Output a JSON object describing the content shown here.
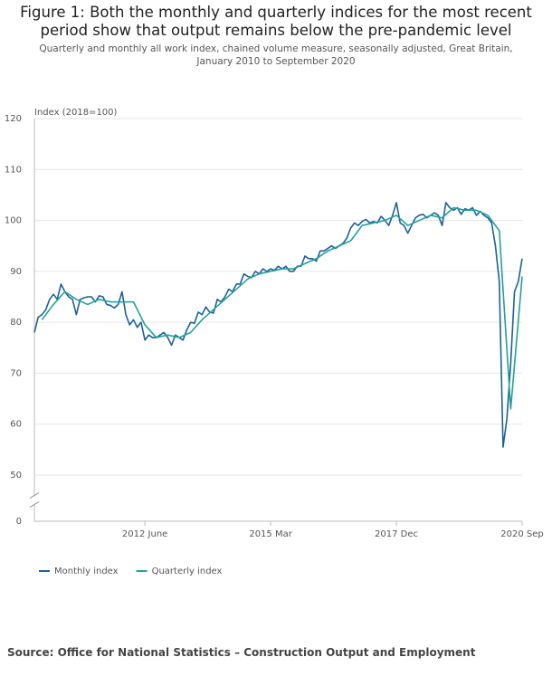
{
  "chart_data": {
    "type": "line",
    "title": "Figure 1: Both the monthly and quarterly indices for the most recent period show that output remains below the pre-pandemic level",
    "subtitle": "Quarterly and monthly all work index, chained volume measure, seasonally adjusted, Great Britain, January 2010 to September 2020",
    "y_label": "Index (2018=100)",
    "source": "Source: Office for National Statistics – Construction Output and Employment",
    "x": [
      2010,
      2010.083,
      2010.167,
      2010.25,
      2010.333,
      2010.417,
      2010.5,
      2010.583,
      2010.667,
      2010.75,
      2010.833,
      2010.917,
      2011,
      2011.083,
      2011.167,
      2011.25,
      2011.333,
      2011.417,
      2011.5,
      2011.583,
      2011.667,
      2011.75,
      2011.833,
      2011.917,
      2012,
      2012.083,
      2012.167,
      2012.25,
      2012.333,
      2012.417,
      2012.5,
      2012.583,
      2012.667,
      2012.75,
      2012.833,
      2012.917,
      2013,
      2013.083,
      2013.167,
      2013.25,
      2013.333,
      2013.417,
      2013.5,
      2013.583,
      2013.667,
      2013.75,
      2013.833,
      2013.917,
      2014,
      2014.083,
      2014.167,
      2014.25,
      2014.333,
      2014.417,
      2014.5,
      2014.583,
      2014.667,
      2014.75,
      2014.833,
      2014.917,
      2015,
      2015.083,
      2015.167,
      2015.25,
      2015.333,
      2015.417,
      2015.5,
      2015.583,
      2015.667,
      2015.75,
      2015.833,
      2015.917,
      2016,
      2016.083,
      2016.167,
      2016.25,
      2016.333,
      2016.417,
      2016.5,
      2016.583,
      2016.667,
      2016.75,
      2016.833,
      2016.917,
      2017,
      2017.083,
      2017.167,
      2017.25,
      2017.333,
      2017.417,
      2017.5,
      2017.583,
      2017.667,
      2017.75,
      2017.833,
      2017.917,
      2018,
      2018.083,
      2018.167,
      2018.25,
      2018.333,
      2018.417,
      2018.5,
      2018.583,
      2018.667,
      2018.75,
      2018.833,
      2018.917,
      2019,
      2019.083,
      2019.167,
      2019.25,
      2019.333,
      2019.417,
      2019.5,
      2019.583,
      2019.667,
      2019.75,
      2019.833,
      2019.917,
      2020,
      2020.083,
      2020.167,
      2020.25,
      2020.333,
      2020.417,
      2020.5,
      2020.583,
      2020.667
    ],
    "xlim": [
      2010,
      2020.667
    ],
    "xticks": [
      {
        "value": 2012.417,
        "label": "2012 June"
      },
      {
        "value": 2015.167,
        "label": "2015 Mar"
      },
      {
        "value": 2017.917,
        "label": "2017 Dec"
      },
      {
        "value": 2020.667,
        "label": "2020 Sep"
      }
    ],
    "ylim": [
      0,
      120
    ],
    "yticks": [
      0,
      50,
      60,
      70,
      80,
      90,
      100,
      110,
      120
    ],
    "axis_break": true,
    "grid": true,
    "legend": "bottom-left",
    "series": [
      {
        "name": "Monthly index",
        "color": "#206095",
        "values": [
          78,
          81,
          81.5,
          82.5,
          84.5,
          85.5,
          84.5,
          87.5,
          86,
          85,
          84.5,
          81.5,
          84.5,
          84.8,
          85,
          85,
          84,
          85.2,
          85,
          83.5,
          83.3,
          82.8,
          83.5,
          86,
          81.5,
          79.5,
          80.5,
          79,
          80,
          76.5,
          77.5,
          77,
          77,
          77.5,
          78,
          77,
          75.5,
          77.5,
          77,
          76.5,
          78.5,
          80,
          79.8,
          82,
          81.5,
          83,
          82,
          81.8,
          84.5,
          84,
          85,
          86.5,
          86,
          87.5,
          87.5,
          89.5,
          89,
          88.8,
          90,
          89.5,
          90.5,
          90,
          90.5,
          90.2,
          91,
          90.5,
          91,
          90,
          90,
          91,
          91,
          93,
          92.5,
          92.5,
          92,
          94,
          94,
          94.5,
          95,
          94.5,
          95,
          95.5,
          96.5,
          98.5,
          99.5,
          99,
          99.8,
          100.2,
          99.5,
          99.8,
          99.5,
          100.8,
          100,
          99,
          101,
          103.5,
          99.5,
          99,
          97.5,
          99,
          100.5,
          101,
          101.2,
          100.5,
          101,
          101.5,
          101,
          99,
          103.5,
          102.5,
          102,
          102.5,
          101.2,
          102.3,
          102,
          102.5,
          101,
          101.8,
          101,
          100.5,
          99.5,
          95,
          88,
          55.5,
          61,
          72,
          86,
          88,
          92.5
        ]
      },
      {
        "name": "Quarterly index",
        "color": "#22a198",
        "x": [
          2010.167,
          2010.417,
          2010.667,
          2010.917,
          2011.167,
          2011.417,
          2011.667,
          2011.917,
          2012.167,
          2012.417,
          2012.667,
          2012.917,
          2013.167,
          2013.417,
          2013.667,
          2013.917,
          2014.167,
          2014.417,
          2014.667,
          2014.917,
          2015.167,
          2015.417,
          2015.667,
          2015.917,
          2016.167,
          2016.417,
          2016.667,
          2016.917,
          2017.167,
          2017.417,
          2017.667,
          2017.917,
          2018.167,
          2018.417,
          2018.667,
          2018.917,
          2019.167,
          2019.417,
          2019.667,
          2019.917,
          2020.167,
          2020.417,
          2020.667
        ],
        "values": [
          80.5,
          83.5,
          86,
          84.5,
          83.5,
          84.5,
          84,
          84,
          84,
          79.5,
          77,
          77.5,
          77,
          78,
          80.5,
          82.5,
          84.5,
          86.5,
          88.5,
          89.5,
          90,
          90.5,
          90.5,
          91.5,
          92.5,
          94,
          95,
          96,
          99,
          99.5,
          100,
          101,
          99,
          100,
          101,
          100.5,
          102.5,
          102,
          102,
          101,
          98,
          63,
          89
        ]
      }
    ]
  }
}
